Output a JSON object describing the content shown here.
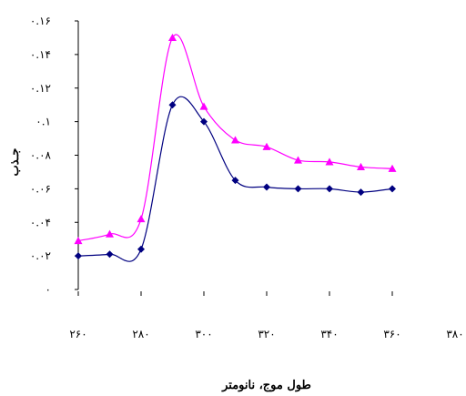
{
  "chart_data": {
    "type": "line",
    "title": "",
    "xlabel": "طول موج، نانومتر",
    "ylabel": "جـذب",
    "xlim": [
      260,
      380
    ],
    "ylim": [
      0,
      0.16
    ],
    "x_ticks": [
      260,
      280,
      300,
      320,
      340,
      360,
      380
    ],
    "x_tick_labels": [
      "۲۶۰",
      "۲۸۰",
      "۳۰۰",
      "۳۲۰",
      "۳۴۰",
      "۳۶۰",
      "۳۸۰"
    ],
    "y_ticks": [
      0,
      0.02,
      0.04,
      0.06,
      0.08,
      0.1,
      0.12,
      0.14,
      0.16
    ],
    "y_tick_labels": [
      "۰",
      "۰.۰۲",
      "۰.۰۴",
      "۰.۰۶",
      "۰.۰۸",
      "۰.۱",
      "۰.۱۲",
      "۰.۱۴",
      "۰.۱۶"
    ],
    "grid": false,
    "legend": "none",
    "series": [
      {
        "color": "#ff00ff",
        "marker": "triangle",
        "x": [
          260,
          270,
          280,
          290,
          300,
          310,
          320,
          330,
          340,
          350,
          360
        ],
        "y": [
          0.029,
          0.033,
          0.042,
          0.15,
          0.109,
          0.089,
          0.085,
          0.077,
          0.076,
          0.073,
          0.072
        ]
      },
      {
        "color": "#000080",
        "marker": "diamond",
        "x": [
          260,
          270,
          280,
          290,
          300,
          310,
          320,
          330,
          340,
          350,
          360
        ],
        "y": [
          0.02,
          0.021,
          0.024,
          0.11,
          0.1,
          0.065,
          0.061,
          0.06,
          0.06,
          0.058,
          0.06
        ]
      }
    ]
  }
}
